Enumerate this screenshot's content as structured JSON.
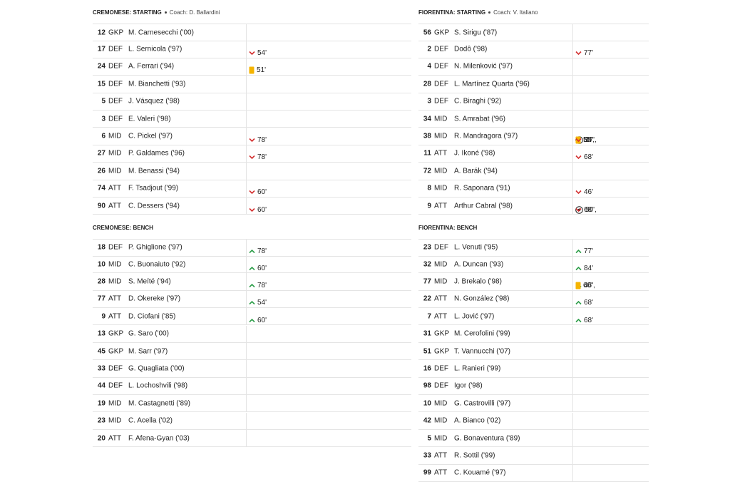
{
  "teams": [
    {
      "starting": {
        "title": "CREMONESE: STARTING",
        "coach": "Coach: D. Ballardini",
        "rows": [
          {
            "no": 12,
            "pos": "GKP",
            "name": "M. Carnesecchi ('00)",
            "events": []
          },
          {
            "no": 17,
            "pos": "DEF",
            "name": "L. Sernicola ('97)",
            "events": [
              {
                "type": "out",
                "minute": "54'"
              }
            ]
          },
          {
            "no": 24,
            "pos": "DEF",
            "name": "A. Ferrari ('94)",
            "events": [
              {
                "type": "yellow",
                "minute": "51'"
              }
            ]
          },
          {
            "no": 15,
            "pos": "DEF",
            "name": "M. Bianchetti ('93)",
            "events": []
          },
          {
            "no": 5,
            "pos": "DEF",
            "name": "J. Vásquez ('98)",
            "events": []
          },
          {
            "no": 3,
            "pos": "DEF",
            "name": "E. Valeri ('98)",
            "events": []
          },
          {
            "no": 6,
            "pos": "MID",
            "name": "C. Pickel ('97)",
            "events": [
              {
                "type": "out",
                "minute": "78'"
              }
            ]
          },
          {
            "no": 27,
            "pos": "MID",
            "name": "P. Galdames ('96)",
            "events": [
              {
                "type": "out",
                "minute": "78'"
              }
            ]
          },
          {
            "no": 26,
            "pos": "MID",
            "name": "M. Benassi ('94)",
            "events": []
          },
          {
            "no": 74,
            "pos": "ATT",
            "name": "F. Tsadjout ('99)",
            "events": [
              {
                "type": "out",
                "minute": "60'"
              }
            ]
          },
          {
            "no": 90,
            "pos": "ATT",
            "name": "C. Dessers ('94)",
            "events": [
              {
                "type": "out",
                "minute": "60'"
              }
            ]
          }
        ]
      },
      "bench": {
        "title": "CREMONESE: BENCH",
        "rows": [
          {
            "no": 18,
            "pos": "DEF",
            "name": "P. Ghiglione ('97)",
            "events": [
              {
                "type": "in",
                "minute": "78'"
              }
            ]
          },
          {
            "no": 10,
            "pos": "MID",
            "name": "C. Buonaiuto ('92)",
            "events": [
              {
                "type": "in",
                "minute": "60'"
              }
            ]
          },
          {
            "no": 28,
            "pos": "MID",
            "name": "S. Meïté ('94)",
            "events": [
              {
                "type": "in",
                "minute": "78'"
              }
            ]
          },
          {
            "no": 77,
            "pos": "ATT",
            "name": "D. Okereke ('97)",
            "events": [
              {
                "type": "in",
                "minute": "54'"
              }
            ]
          },
          {
            "no": 9,
            "pos": "ATT",
            "name": "D. Ciofani ('85)",
            "events": [
              {
                "type": "in",
                "minute": "60'"
              }
            ]
          },
          {
            "no": 13,
            "pos": "GKP",
            "name": "G. Saro ('00)",
            "events": []
          },
          {
            "no": 45,
            "pos": "GKP",
            "name": "M. Sarr ('97)",
            "events": []
          },
          {
            "no": 33,
            "pos": "DEF",
            "name": "G. Quagliata ('00)",
            "events": []
          },
          {
            "no": 44,
            "pos": "DEF",
            "name": "L. Lochoshvili ('98)",
            "events": []
          },
          {
            "no": 19,
            "pos": "MID",
            "name": "M. Castagnetti ('89)",
            "events": []
          },
          {
            "no": 23,
            "pos": "MID",
            "name": "C. Acella ('02)",
            "events": []
          },
          {
            "no": 20,
            "pos": "ATT",
            "name": "F. Afena-Gyan ('03)",
            "events": []
          }
        ]
      }
    },
    {
      "starting": {
        "title": "FIORENTINA: STARTING",
        "coach": "Coach: V. Italiano",
        "rows": [
          {
            "no": 56,
            "pos": "GKP",
            "name": "S. Sirigu ('87)",
            "events": []
          },
          {
            "no": 2,
            "pos": "DEF",
            "name": "Dodô ('98)",
            "events": [
              {
                "type": "out",
                "minute": "77'"
              }
            ]
          },
          {
            "no": 4,
            "pos": "DEF",
            "name": "N. Milenković ('97)",
            "events": []
          },
          {
            "no": 28,
            "pos": "DEF",
            "name": "L. Martínez Quarta ('96)",
            "events": []
          },
          {
            "no": 3,
            "pos": "DEF",
            "name": "C. Biraghi ('92)",
            "events": []
          },
          {
            "no": 34,
            "pos": "MID",
            "name": "S. Amrabat ('96)",
            "events": []
          },
          {
            "no": 38,
            "pos": "MID",
            "name": "R. Mandragora ('97)",
            "events": [
              {
                "type": "goal",
                "minute": "27',"
              },
              {
                "type": "yellow",
                "minute": "55',"
              },
              {
                "type": "out",
                "minute": "84'"
              }
            ]
          },
          {
            "no": 11,
            "pos": "ATT",
            "name": "J. Ikoné ('98)",
            "events": [
              {
                "type": "out",
                "minute": "68'"
              }
            ]
          },
          {
            "no": 72,
            "pos": "MID",
            "name": "A. Barák ('94)",
            "events": []
          },
          {
            "no": 8,
            "pos": "MID",
            "name": "R. Saponara ('91)",
            "events": [
              {
                "type": "out",
                "minute": "46'"
              }
            ]
          },
          {
            "no": 9,
            "pos": "ATT",
            "name": "Arthur Cabral ('98)",
            "events": [
              {
                "type": "goal",
                "minute": "50',"
              },
              {
                "type": "out",
                "minute": "68'"
              }
            ]
          }
        ]
      },
      "bench": {
        "title": "FIORENTINA: BENCH",
        "rows": [
          {
            "no": 23,
            "pos": "DEF",
            "name": "L. Venuti ('95)",
            "events": [
              {
                "type": "in",
                "minute": "77'"
              }
            ]
          },
          {
            "no": 32,
            "pos": "MID",
            "name": "A. Duncan ('93)",
            "events": [
              {
                "type": "in",
                "minute": "84'"
              }
            ]
          },
          {
            "no": 77,
            "pos": "MID",
            "name": "J. Brekalo ('98)",
            "events": [
              {
                "type": "in",
                "minute": "46',"
              },
              {
                "type": "yellow",
                "minute": "60'"
              }
            ]
          },
          {
            "no": 22,
            "pos": "ATT",
            "name": "N. González ('98)",
            "events": [
              {
                "type": "in",
                "minute": "68'"
              }
            ]
          },
          {
            "no": 7,
            "pos": "ATT",
            "name": "L. Jović ('97)",
            "events": [
              {
                "type": "in",
                "minute": "68'"
              }
            ]
          },
          {
            "no": 31,
            "pos": "GKP",
            "name": "M. Cerofolini ('99)",
            "events": []
          },
          {
            "no": 51,
            "pos": "GKP",
            "name": "T. Vannucchi ('07)",
            "events": []
          },
          {
            "no": 16,
            "pos": "DEF",
            "name": "L. Ranieri ('99)",
            "events": []
          },
          {
            "no": 98,
            "pos": "DEF",
            "name": "Igor ('98)",
            "events": []
          },
          {
            "no": 10,
            "pos": "MID",
            "name": "G. Castrovilli ('97)",
            "events": []
          },
          {
            "no": 42,
            "pos": "MID",
            "name": "A. Bianco ('02)",
            "events": []
          },
          {
            "no": 5,
            "pos": "MID",
            "name": "G. Bonaventura ('89)",
            "events": []
          },
          {
            "no": 33,
            "pos": "ATT",
            "name": "R. Sottil ('99)",
            "events": []
          },
          {
            "no": 99,
            "pos": "ATT",
            "name": "C. Kouamé ('97)",
            "events": []
          }
        ]
      }
    }
  ]
}
